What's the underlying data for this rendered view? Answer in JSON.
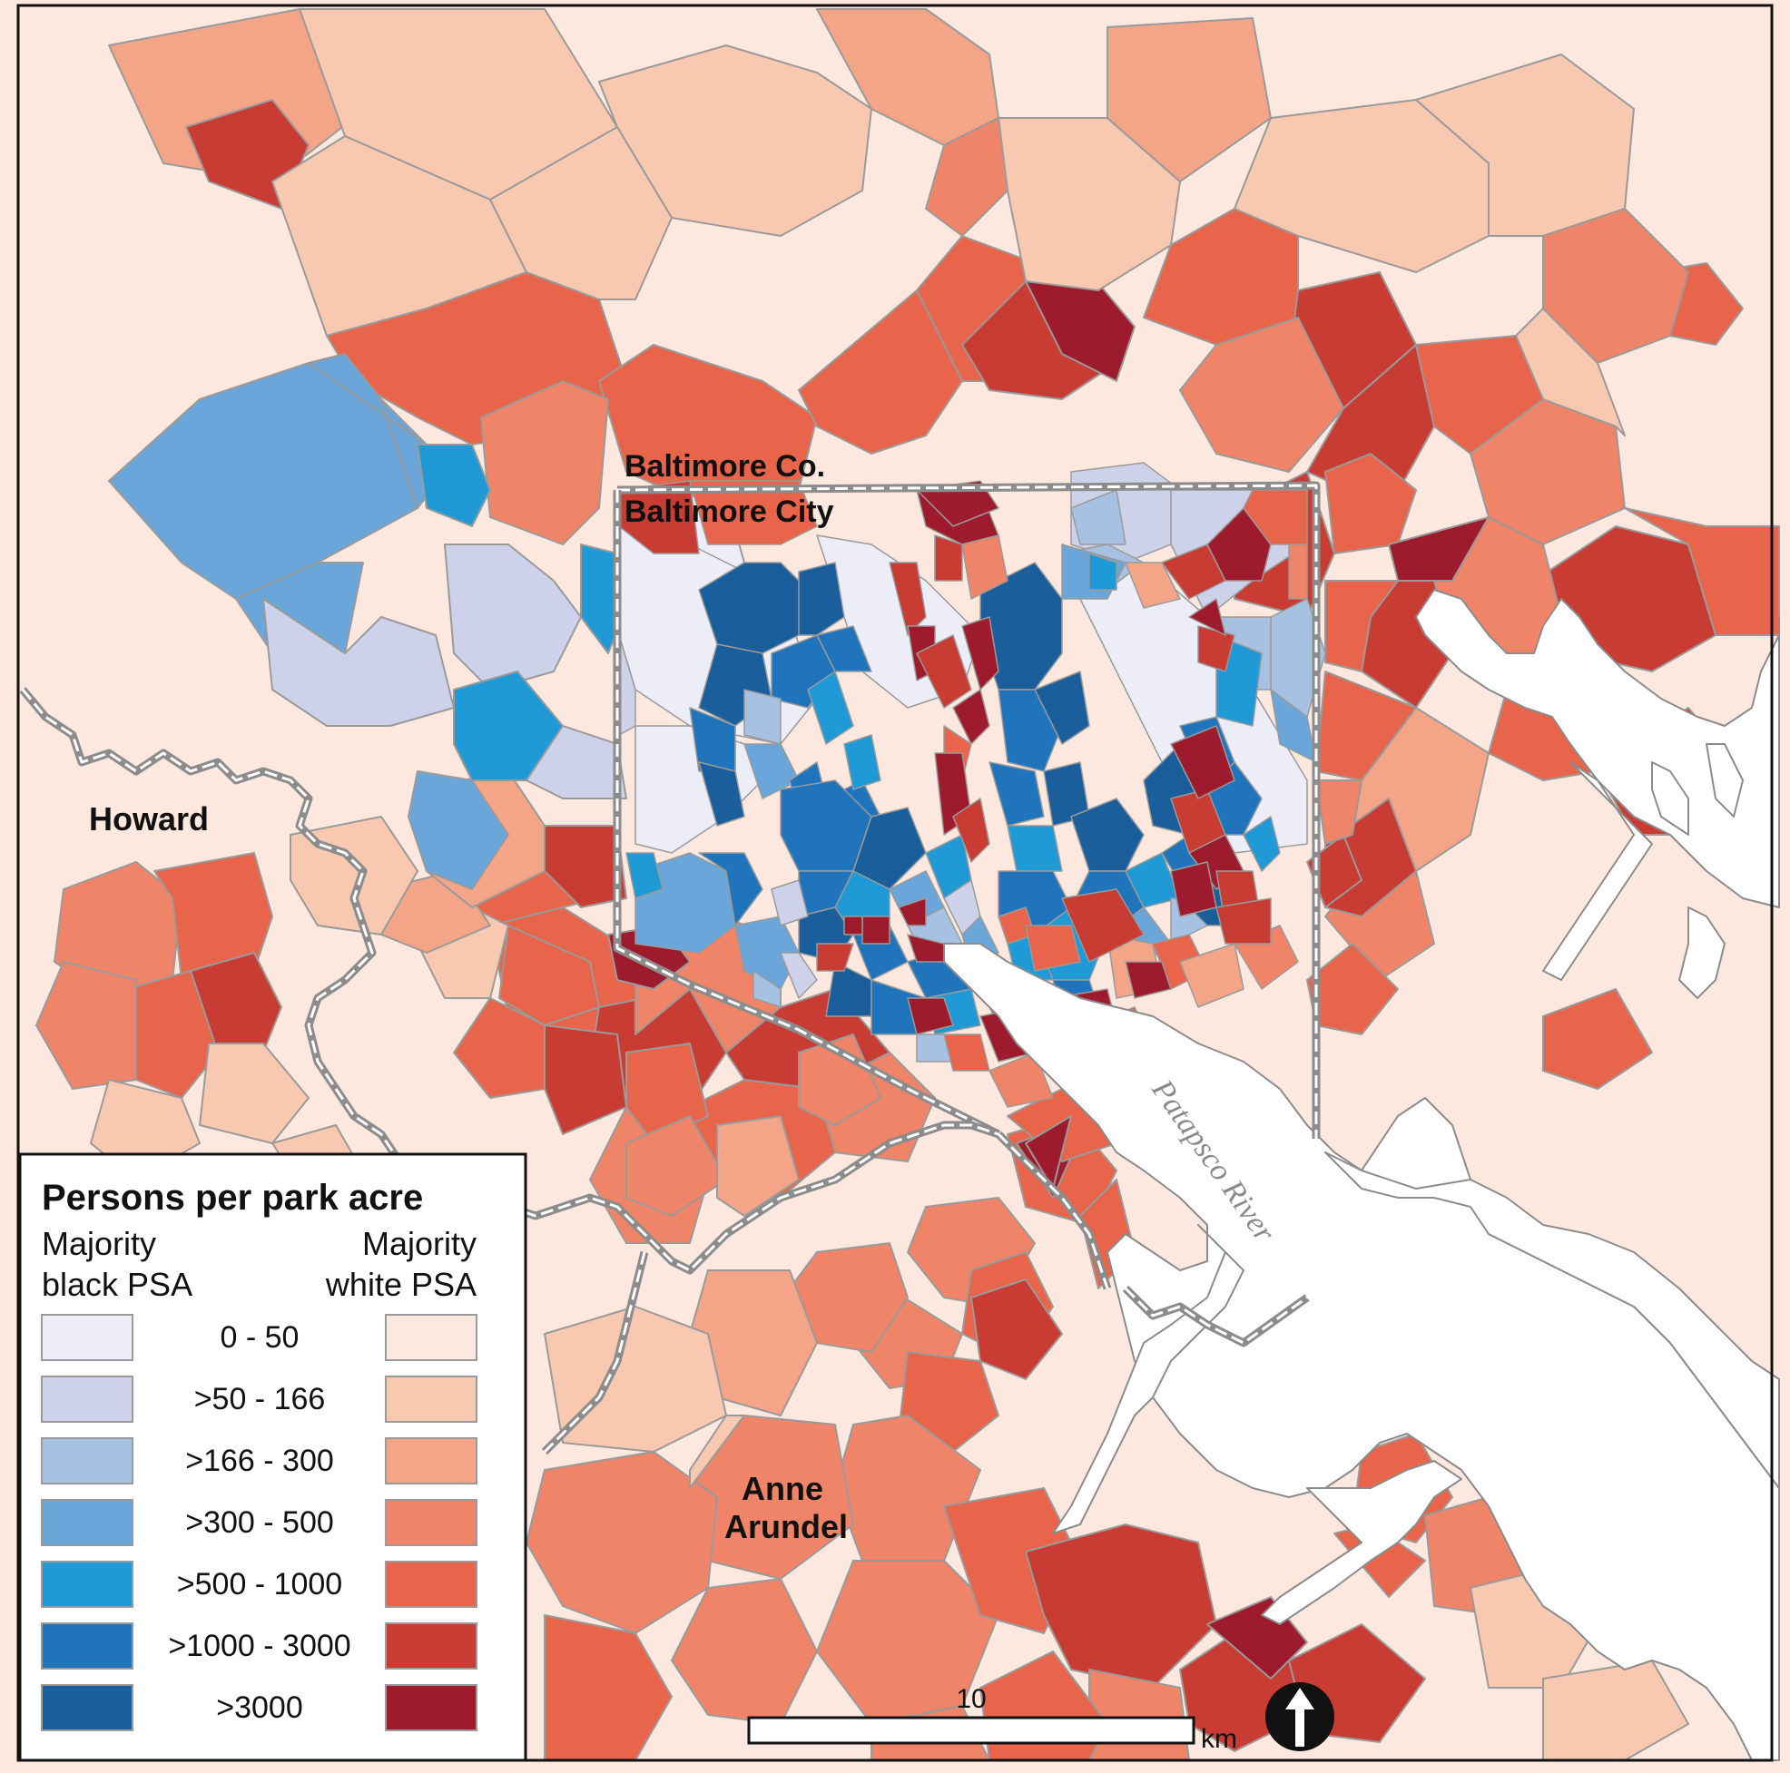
{
  "colors": {
    "black_ramp": [
      "#ecedf7",
      "#cdd2ea",
      "#a6c1e2",
      "#6aa6d9",
      "#1f9ad6",
      "#1f74bc",
      "#1a5e9c"
    ],
    "white_ramp": [
      "#fce8de",
      "#f9c8b0",
      "#f5a587",
      "#f08468",
      "#e8644a",
      "#c83c34",
      "#9e1b2e"
    ],
    "water": "#ffffff",
    "cell_border": "#9a9a9a",
    "county_border": "#8c8c8c",
    "frame": "#111111"
  },
  "labels": {
    "baltimore_co": "Baltimore Co.",
    "baltimore_city": "Baltimore City",
    "howard": "Howard",
    "anne_line1": "Anne",
    "anne_line2": "Arundel",
    "river": "Patapsco River"
  },
  "legend": {
    "title": "Persons per park acre",
    "left_heading_line1": "Majority",
    "left_heading_line2": "black PSA",
    "right_heading_line1": "Majority",
    "right_heading_line2": "white PSA",
    "classes": [
      "0 - 50",
      ">50 - 166",
      ">166 - 300",
      ">300 - 500",
      ">500 - 1000",
      ">1000 - 3000",
      ">3000"
    ]
  },
  "scale_bar": {
    "value": "10",
    "unit": "km"
  },
  "north_arrow": {
    "icon": "north-arrow-icon"
  }
}
